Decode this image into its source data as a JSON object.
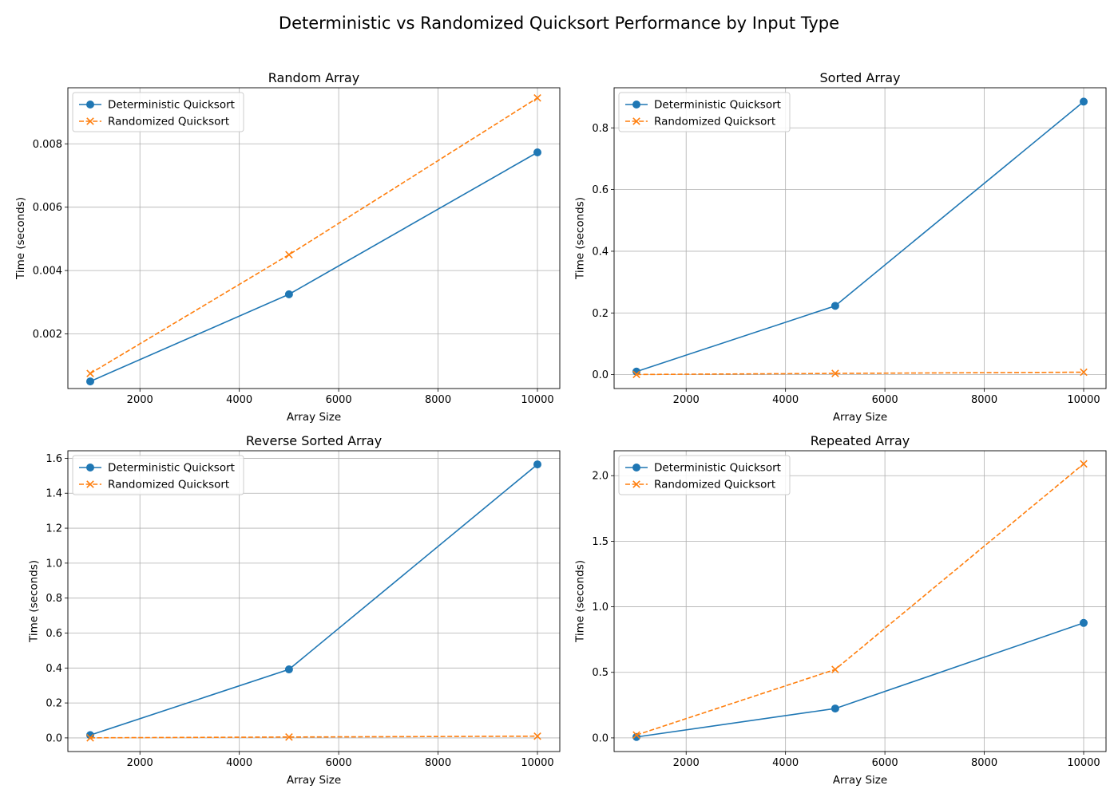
{
  "figure": {
    "suptitle": "Deterministic vs Randomized Quicksort Performance by Input Type"
  },
  "chart_data": [
    {
      "type": "line",
      "title": "Random Array",
      "xlabel": "Array Size",
      "ylabel": "Time (seconds)",
      "xlim": [
        550,
        10450
      ],
      "ylim": [
        0.000275,
        0.00977
      ],
      "xticks": [
        2000,
        4000,
        6000,
        8000,
        10000
      ],
      "xtick_labels": [
        "2000",
        "4000",
        "6000",
        "8000",
        "10000"
      ],
      "yticks": [
        0.002,
        0.004,
        0.006,
        0.008
      ],
      "ytick_labels": [
        "0.002",
        "0.004",
        "0.006",
        "0.008"
      ],
      "grid": true,
      "legend": "upper-left",
      "x": [
        1000,
        5000,
        10000
      ],
      "series": [
        {
          "name": "Deterministic Quicksort",
          "color": "#1f77b4",
          "dash": "solid",
          "marker": "circle",
          "values": [
            0.0005,
            0.00325,
            0.00773
          ]
        },
        {
          "name": "Randomized Quicksort",
          "color": "#ff7f0e",
          "dash": "dashed",
          "marker": "x",
          "values": [
            0.00075,
            0.0045,
            0.00945
          ]
        }
      ]
    },
    {
      "type": "line",
      "title": "Sorted Array",
      "xlabel": "Array Size",
      "ylabel": "Time (seconds)",
      "xlim": [
        550,
        10450
      ],
      "ylim": [
        -0.045,
        0.93
      ],
      "xticks": [
        2000,
        4000,
        6000,
        8000,
        10000
      ],
      "xtick_labels": [
        "2000",
        "4000",
        "6000",
        "8000",
        "10000"
      ],
      "yticks": [
        0.0,
        0.2,
        0.4,
        0.6,
        0.8
      ],
      "ytick_labels": [
        "0.0",
        "0.2",
        "0.4",
        "0.6",
        "0.8"
      ],
      "grid": true,
      "legend": "upper-left",
      "x": [
        1000,
        5000,
        10000
      ],
      "series": [
        {
          "name": "Deterministic Quicksort",
          "color": "#1f77b4",
          "dash": "solid",
          "marker": "circle",
          "values": [
            0.01,
            0.223,
            0.885
          ]
        },
        {
          "name": "Randomized Quicksort",
          "color": "#ff7f0e",
          "dash": "dashed",
          "marker": "x",
          "values": [
            0.0005,
            0.004,
            0.008
          ]
        }
      ]
    },
    {
      "type": "line",
      "title": "Reverse Sorted Array",
      "xlabel": "Array Size",
      "ylabel": "Time (seconds)",
      "xlim": [
        550,
        10450
      ],
      "ylim": [
        -0.078,
        1.643
      ],
      "xticks": [
        2000,
        4000,
        6000,
        8000,
        10000
      ],
      "xtick_labels": [
        "2000",
        "4000",
        "6000",
        "8000",
        "10000"
      ],
      "yticks": [
        0.0,
        0.2,
        0.4,
        0.6,
        0.8,
        1.0,
        1.2,
        1.4,
        1.6
      ],
      "ytick_labels": [
        "0.0",
        "0.2",
        "0.4",
        "0.6",
        "0.8",
        "1.0",
        "1.2",
        "1.4",
        "1.6"
      ],
      "grid": true,
      "legend": "upper-left",
      "x": [
        1000,
        5000,
        10000
      ],
      "series": [
        {
          "name": "Deterministic Quicksort",
          "color": "#1f77b4",
          "dash": "solid",
          "marker": "circle",
          "values": [
            0.016,
            0.392,
            1.565
          ]
        },
        {
          "name": "Randomized Quicksort",
          "color": "#ff7f0e",
          "dash": "dashed",
          "marker": "x",
          "values": [
            0.0005,
            0.005,
            0.01
          ]
        }
      ]
    },
    {
      "type": "line",
      "title": "Repeated Array",
      "xlabel": "Array Size",
      "ylabel": "Time (seconds)",
      "xlim": [
        550,
        10450
      ],
      "ylim": [
        -0.104,
        2.19
      ],
      "xticks": [
        2000,
        4000,
        6000,
        8000,
        10000
      ],
      "xtick_labels": [
        "2000",
        "4000",
        "6000",
        "8000",
        "10000"
      ],
      "yticks": [
        0.0,
        0.5,
        1.0,
        1.5,
        2.0
      ],
      "ytick_labels": [
        "0.0",
        "0.5",
        "1.0",
        "1.5",
        "2.0"
      ],
      "grid": true,
      "legend": "upper-left",
      "x": [
        1000,
        5000,
        10000
      ],
      "series": [
        {
          "name": "Deterministic Quicksort",
          "color": "#1f77b4",
          "dash": "solid",
          "marker": "circle",
          "values": [
            0.007,
            0.224,
            0.877
          ]
        },
        {
          "name": "Randomized Quicksort",
          "color": "#ff7f0e",
          "dash": "dashed",
          "marker": "x",
          "values": [
            0.022,
            0.522,
            2.09
          ]
        }
      ]
    }
  ]
}
